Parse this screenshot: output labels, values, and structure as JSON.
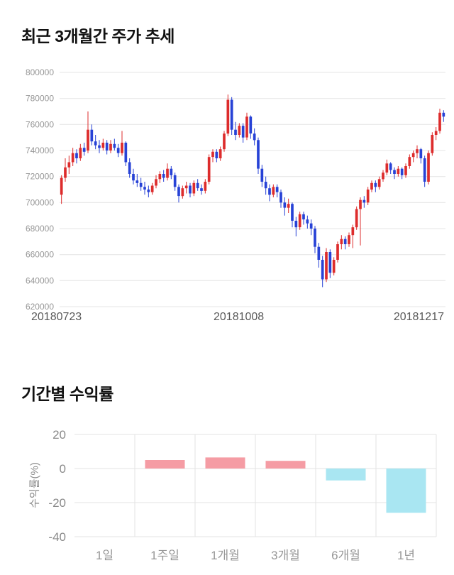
{
  "price_section": {
    "title": "최근 3개월간 주가 추세"
  },
  "returns_section": {
    "title": "기간별 수익률"
  },
  "chart_data": [
    {
      "type": "candlestick",
      "title": "최근 3개월간 주가 추세",
      "ylim": [
        620000,
        800000
      ],
      "ytick_step": 20000,
      "ytick_labels": [
        "620000",
        "640000",
        "660000",
        "680000",
        "700000",
        "720000",
        "740000",
        "760000",
        "780000",
        "800000"
      ],
      "x_axis_labels": [
        "20180723",
        "20181008",
        "20181217"
      ],
      "up_color": "#dd2c2c",
      "down_color": "#2742d6",
      "grid_color": "#e4e4e4",
      "tick_text_color": "#979797",
      "candles_ohlc": [
        [
          706000,
          721000,
          699000,
          719000
        ],
        [
          719000,
          734000,
          716000,
          727000
        ],
        [
          727000,
          736000,
          722000,
          731000
        ],
        [
          731000,
          742000,
          728000,
          738000
        ],
        [
          738000,
          741000,
          730000,
          734000
        ],
        [
          734000,
          745000,
          732000,
          742000
        ],
        [
          742000,
          746000,
          736000,
          739000
        ],
        [
          740000,
          770000,
          738000,
          756000
        ],
        [
          756000,
          760000,
          744000,
          747000
        ],
        [
          747000,
          752000,
          741000,
          744000
        ],
        [
          744000,
          748000,
          738000,
          742000
        ],
        [
          742000,
          749000,
          740000,
          746000
        ],
        [
          746000,
          748000,
          737000,
          740000
        ],
        [
          740000,
          748000,
          738000,
          745000
        ],
        [
          745000,
          749000,
          740000,
          742000
        ],
        [
          742000,
          745000,
          735000,
          738000
        ],
        [
          738000,
          755000,
          736000,
          746000
        ],
        [
          746000,
          747000,
          728000,
          731000
        ],
        [
          731000,
          734000,
          719000,
          722000
        ],
        [
          722000,
          726000,
          714000,
          717000
        ],
        [
          717000,
          722000,
          712000,
          715000
        ],
        [
          715000,
          719000,
          709000,
          712000
        ],
        [
          712000,
          716000,
          706000,
          710000
        ],
        [
          710000,
          713000,
          704000,
          708000
        ],
        [
          708000,
          715000,
          706000,
          713000
        ],
        [
          713000,
          721000,
          711000,
          718000
        ],
        [
          718000,
          724000,
          715000,
          722000
        ],
        [
          722000,
          725000,
          716000,
          719000
        ],
        [
          719000,
          730000,
          717000,
          726000
        ],
        [
          726000,
          728000,
          718000,
          721000
        ],
        [
          721000,
          723000,
          709000,
          712000
        ],
        [
          712000,
          714000,
          700000,
          705000
        ],
        [
          705000,
          713000,
          703000,
          711000
        ],
        [
          711000,
          716000,
          707000,
          713000
        ],
        [
          713000,
          715000,
          704000,
          707000
        ],
        [
          707000,
          717000,
          705000,
          715000
        ],
        [
          715000,
          718000,
          709000,
          711000
        ],
        [
          711000,
          714000,
          706000,
          709000
        ],
        [
          709000,
          718000,
          707000,
          716000
        ],
        [
          716000,
          737000,
          714000,
          735000
        ],
        [
          735000,
          741000,
          731000,
          739000
        ],
        [
          739000,
          741000,
          731000,
          734000
        ],
        [
          734000,
          743000,
          732000,
          741000
        ],
        [
          741000,
          755000,
          739000,
          753000
        ],
        [
          753000,
          783000,
          751000,
          779000
        ],
        [
          779000,
          781000,
          752000,
          756000
        ],
        [
          756000,
          762000,
          748000,
          752000
        ],
        [
          752000,
          761000,
          750000,
          759000
        ],
        [
          759000,
          761000,
          746000,
          750000
        ],
        [
          750000,
          769000,
          748000,
          766000
        ],
        [
          766000,
          767000,
          749000,
          753000
        ],
        [
          753000,
          757000,
          744000,
          748000
        ],
        [
          748000,
          750000,
          722000,
          726000
        ],
        [
          726000,
          729000,
          712000,
          716000
        ],
        [
          716000,
          720000,
          706000,
          711000
        ],
        [
          711000,
          714000,
          701000,
          706000
        ],
        [
          706000,
          714000,
          704000,
          712000
        ],
        [
          712000,
          714000,
          704000,
          708000
        ],
        [
          708000,
          710000,
          696000,
          700000
        ],
        [
          700000,
          704000,
          690000,
          696000
        ],
        [
          696000,
          703000,
          692000,
          699000
        ],
        [
          699000,
          700000,
          681000,
          686000
        ],
        [
          686000,
          689000,
          674000,
          681000
        ],
        [
          681000,
          693000,
          679000,
          691000
        ],
        [
          691000,
          693000,
          683000,
          687000
        ],
        [
          687000,
          690000,
          680000,
          684000
        ],
        [
          684000,
          687000,
          675000,
          680000
        ],
        [
          680000,
          682000,
          661000,
          666000
        ],
        [
          666000,
          669000,
          650000,
          656000
        ],
        [
          656000,
          659000,
          635000,
          641000
        ],
        [
          641000,
          665000,
          639000,
          662000
        ],
        [
          662000,
          664000,
          642000,
          646000
        ],
        [
          646000,
          658000,
          644000,
          656000
        ],
        [
          656000,
          670000,
          654000,
          668000
        ],
        [
          668000,
          675000,
          664000,
          672000
        ],
        [
          672000,
          674000,
          664000,
          668000
        ],
        [
          668000,
          677000,
          666000,
          675000
        ],
        [
          675000,
          683000,
          665000,
          681000
        ],
        [
          681000,
          697000,
          679000,
          695000
        ],
        [
          695000,
          704000,
          667000,
          702000
        ],
        [
          702000,
          705000,
          696000,
          700000
        ],
        [
          700000,
          712000,
          698000,
          710000
        ],
        [
          710000,
          717000,
          708000,
          715000
        ],
        [
          715000,
          717000,
          708000,
          712000
        ],
        [
          712000,
          720000,
          710000,
          718000
        ],
        [
          718000,
          725000,
          716000,
          723000
        ],
        [
          723000,
          733000,
          721000,
          730000
        ],
        [
          730000,
          731000,
          722000,
          725000
        ],
        [
          725000,
          727000,
          718000,
          722000
        ],
        [
          722000,
          728000,
          720000,
          726000
        ],
        [
          726000,
          727000,
          718000,
          721000
        ],
        [
          721000,
          730000,
          719000,
          728000
        ],
        [
          728000,
          737000,
          726000,
          735000
        ],
        [
          735000,
          740000,
          731000,
          738000
        ],
        [
          738000,
          744000,
          734000,
          741000
        ],
        [
          741000,
          742000,
          730000,
          734000
        ],
        [
          734000,
          736000,
          712000,
          716000
        ],
        [
          716000,
          740000,
          714000,
          738000
        ],
        [
          738000,
          754000,
          736000,
          752000
        ],
        [
          752000,
          758000,
          748000,
          755000
        ],
        [
          755000,
          772000,
          753000,
          769000
        ],
        [
          769000,
          771000,
          762000,
          766000
        ]
      ]
    },
    {
      "type": "bar",
      "title": "기간별 수익률",
      "categories": [
        "1일",
        "1주일",
        "1개월",
        "3개월",
        "6개월",
        "1년"
      ],
      "values": [
        0,
        5,
        6.5,
        4.5,
        -7,
        -26
      ],
      "ylabel": "수익률(%)",
      "ylim": [
        -40,
        20
      ],
      "yticks": [
        20,
        0,
        -20,
        -40
      ],
      "positive_color": "#f59ca4",
      "negative_color": "#a9e6f2",
      "grid_color": "#e3e3e3",
      "tick_text_color": "#8a8a8a"
    }
  ]
}
